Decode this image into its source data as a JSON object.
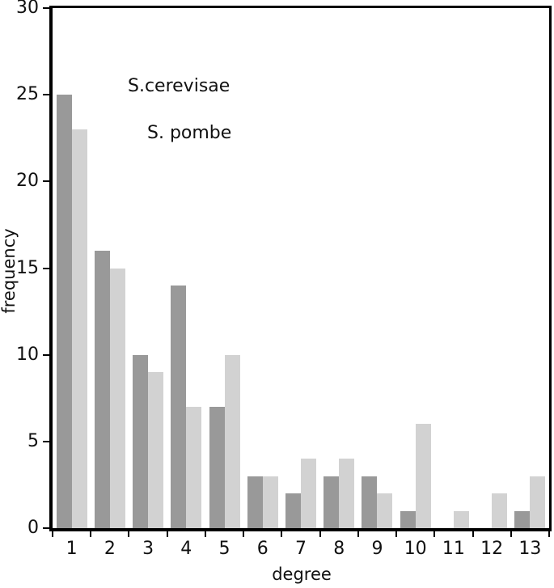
{
  "figure": {
    "background": "#ffffff",
    "axis_color": "#000000",
    "text_color": "#111111"
  },
  "chart_data": {
    "type": "bar",
    "title": "",
    "xlabel": "degree",
    "ylabel": "frequency",
    "categories": [
      "1",
      "2",
      "3",
      "4",
      "5",
      "6",
      "7",
      "8",
      "9",
      "10",
      "11",
      "12",
      "13"
    ],
    "series": [
      {
        "name": "S.cerevisae",
        "color": "#999999",
        "values": [
          25,
          16,
          10,
          14,
          7,
          3,
          2,
          3,
          3,
          1,
          0,
          0,
          1
        ]
      },
      {
        "name": "S. pombe",
        "color": "#d2d2d2",
        "values": [
          23,
          15,
          9,
          7,
          10,
          3,
          4,
          4,
          2,
          6,
          1,
          2,
          3
        ]
      }
    ],
    "ylim": [
      0,
      30
    ],
    "yticks": [
      0,
      5,
      10,
      15,
      20,
      25,
      30
    ],
    "grid": false,
    "legend_position": "inline-annotations-top-left"
  }
}
